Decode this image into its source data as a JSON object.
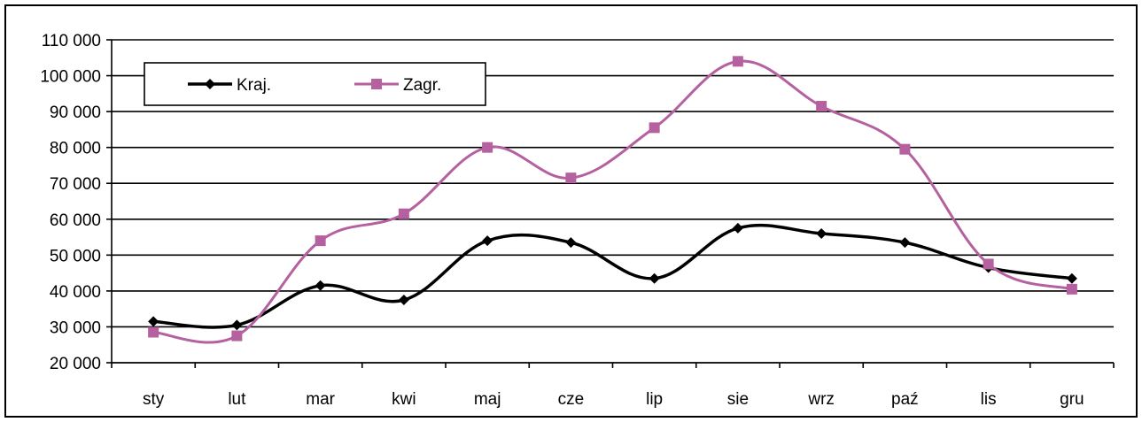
{
  "chart_data": {
    "type": "line",
    "title": "",
    "xlabel": "",
    "ylabel": "",
    "categories": [
      "sty",
      "lut",
      "mar",
      "kwi",
      "maj",
      "cze",
      "lip",
      "sie",
      "wrz",
      "paź",
      "lis",
      "gru"
    ],
    "ylim": [
      20000,
      110000
    ],
    "yticks": [
      20000,
      30000,
      40000,
      50000,
      60000,
      70000,
      80000,
      90000,
      100000,
      110000
    ],
    "ytick_labels": [
      "20 000",
      "30 000",
      "40 000",
      "50 000",
      "60 000",
      "70 000",
      "80 000",
      "90 000",
      "100 000",
      "110 000"
    ],
    "grid": "horizontal",
    "legend_position": "top-left",
    "smooth": true,
    "series": [
      {
        "name": "Kraj.",
        "marker": "diamond",
        "color": "#000000",
        "values": [
          31500,
          30500,
          41500,
          37500,
          54000,
          53500,
          43500,
          57500,
          56000,
          53500,
          46500,
          43500
        ]
      },
      {
        "name": "Zagr.",
        "marker": "square",
        "color": "#b5609f",
        "values": [
          28500,
          27500,
          54000,
          61500,
          80000,
          71500,
          85500,
          104000,
          91500,
          79500,
          47500,
          40500
        ]
      }
    ]
  }
}
